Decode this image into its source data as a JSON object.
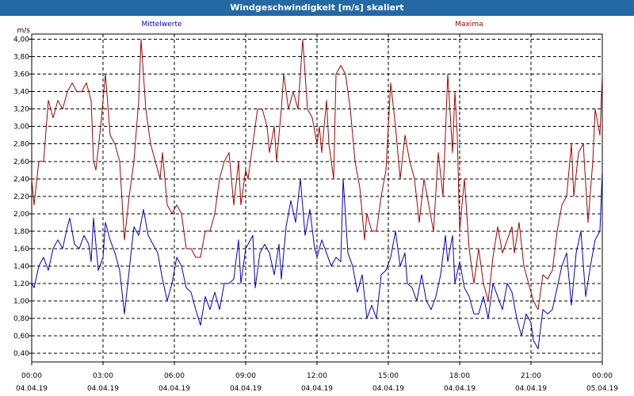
{
  "window": {
    "title": "Windgeschwindigkeit [m/s] skaliert"
  },
  "chart_data": {
    "type": "line",
    "title": "Windgeschwindigkeit [m/s] skaliert",
    "ylabel": "m/s",
    "ylim": [
      0.3,
      4.06
    ],
    "y_ticks": [
      "0,40",
      "0,60",
      "0,80",
      "1,00",
      "1,20",
      "1,40",
      "1,60",
      "1,80",
      "2,00",
      "2,20",
      "2,40",
      "2,60",
      "2,80",
      "3,00",
      "3,20",
      "3,40",
      "3,60",
      "3,80",
      "4,00"
    ],
    "y_tick_values": [
      0.4,
      0.6,
      0.8,
      1.0,
      1.2,
      1.4,
      1.6,
      1.8,
      2.0,
      2.2,
      2.4,
      2.6,
      2.8,
      3.0,
      3.2,
      3.4,
      3.6,
      3.8,
      4.0
    ],
    "xlim": [
      0,
      24
    ],
    "x_ticks": [
      {
        "time": "00:00",
        "date": "04.04.19",
        "hour": 0
      },
      {
        "time": "03:00",
        "date": "04.04.19",
        "hour": 3
      },
      {
        "time": "06:00",
        "date": "04.04.19",
        "hour": 6
      },
      {
        "time": "09:00",
        "date": "04.04.19",
        "hour": 9
      },
      {
        "time": "12:00",
        "date": "04.04.19",
        "hour": 12
      },
      {
        "time": "15:00",
        "date": "04.04.19",
        "hour": 15
      },
      {
        "time": "18:00",
        "date": "04.04.19",
        "hour": 18
      },
      {
        "time": "21:00",
        "date": "04.04.19",
        "hour": 21
      },
      {
        "time": "00:00",
        "date": "05.04.19",
        "hour": 24
      }
    ],
    "grid": true,
    "legend_position": "top",
    "series": [
      {
        "name": "Mittelwerte",
        "color": "#0000cc",
        "points": [
          [
            0,
            1.2
          ],
          [
            0.1,
            1.15
          ],
          [
            0.3,
            1.4
          ],
          [
            0.5,
            1.5
          ],
          [
            0.7,
            1.35
          ],
          [
            0.9,
            1.6
          ],
          [
            1.1,
            1.7
          ],
          [
            1.3,
            1.6
          ],
          [
            1.5,
            1.85
          ],
          [
            1.6,
            1.95
          ],
          [
            1.8,
            1.65
          ],
          [
            2.0,
            1.6
          ],
          [
            2.2,
            1.75
          ],
          [
            2.4,
            1.65
          ],
          [
            2.5,
            1.45
          ],
          [
            2.6,
            1.95
          ],
          [
            2.8,
            1.35
          ],
          [
            3.0,
            1.5
          ],
          [
            3.1,
            1.9
          ],
          [
            3.3,
            1.7
          ],
          [
            3.5,
            1.55
          ],
          [
            3.7,
            1.35
          ],
          [
            3.9,
            0.85
          ],
          [
            4.1,
            1.35
          ],
          [
            4.3,
            1.85
          ],
          [
            4.5,
            1.75
          ],
          [
            4.7,
            2.05
          ],
          [
            4.9,
            1.75
          ],
          [
            5.1,
            1.65
          ],
          [
            5.3,
            1.55
          ],
          [
            5.5,
            1.25
          ],
          [
            5.7,
            1.0
          ],
          [
            5.9,
            1.2
          ],
          [
            6.1,
            1.5
          ],
          [
            6.3,
            1.4
          ],
          [
            6.5,
            1.15
          ],
          [
            6.7,
            1.1
          ],
          [
            6.9,
            0.9
          ],
          [
            7.1,
            0.72
          ],
          [
            7.3,
            1.05
          ],
          [
            7.5,
            0.9
          ],
          [
            7.7,
            1.1
          ],
          [
            7.9,
            0.9
          ],
          [
            8.1,
            1.2
          ],
          [
            8.3,
            1.2
          ],
          [
            8.5,
            1.25
          ],
          [
            8.7,
            1.7
          ],
          [
            8.8,
            1.2
          ],
          [
            9.0,
            1.6
          ],
          [
            9.1,
            1.65
          ],
          [
            9.3,
            1.75
          ],
          [
            9.4,
            1.15
          ],
          [
            9.6,
            1.55
          ],
          [
            9.8,
            1.65
          ],
          [
            10.0,
            1.55
          ],
          [
            10.2,
            1.3
          ],
          [
            10.4,
            1.65
          ],
          [
            10.5,
            1.25
          ],
          [
            10.7,
            1.85
          ],
          [
            10.9,
            2.15
          ],
          [
            11.1,
            1.9
          ],
          [
            11.3,
            2.4
          ],
          [
            11.5,
            1.75
          ],
          [
            11.7,
            2.05
          ],
          [
            11.9,
            1.6
          ],
          [
            12.0,
            1.5
          ],
          [
            12.2,
            1.7
          ],
          [
            12.4,
            1.55
          ],
          [
            12.6,
            1.4
          ],
          [
            12.8,
            1.5
          ],
          [
            13.0,
            1.45
          ],
          [
            13.1,
            2.4
          ],
          [
            13.3,
            1.55
          ],
          [
            13.5,
            1.4
          ],
          [
            13.7,
            1.1
          ],
          [
            13.9,
            1.3
          ],
          [
            14.1,
            0.8
          ],
          [
            14.3,
            0.95
          ],
          [
            14.5,
            0.8
          ],
          [
            14.7,
            1.3
          ],
          [
            14.9,
            1.35
          ],
          [
            15.1,
            1.5
          ],
          [
            15.3,
            1.8
          ],
          [
            15.5,
            1.4
          ],
          [
            15.7,
            1.55
          ],
          [
            15.8,
            1.2
          ],
          [
            16.0,
            1.15
          ],
          [
            16.2,
            1.0
          ],
          [
            16.4,
            1.3
          ],
          [
            16.6,
            1.0
          ],
          [
            16.8,
            0.9
          ],
          [
            17.0,
            1.05
          ],
          [
            17.2,
            1.3
          ],
          [
            17.4,
            1.75
          ],
          [
            17.5,
            1.45
          ],
          [
            17.7,
            1.75
          ],
          [
            17.8,
            1.2
          ],
          [
            18.0,
            1.45
          ],
          [
            18.2,
            1.15
          ],
          [
            18.4,
            1.05
          ],
          [
            18.6,
            0.85
          ],
          [
            18.8,
            0.85
          ],
          [
            19.0,
            1.05
          ],
          [
            19.2,
            0.8
          ],
          [
            19.4,
            1.2
          ],
          [
            19.6,
            1.05
          ],
          [
            19.8,
            0.9
          ],
          [
            20.0,
            1.2
          ],
          [
            20.2,
            1.1
          ],
          [
            20.4,
            0.8
          ],
          [
            20.6,
            0.6
          ],
          [
            20.8,
            0.85
          ],
          [
            21.0,
            0.75
          ],
          [
            21.1,
            0.55
          ],
          [
            21.3,
            0.45
          ],
          [
            21.5,
            0.9
          ],
          [
            21.7,
            0.85
          ],
          [
            21.9,
            0.9
          ],
          [
            22.1,
            1.15
          ],
          [
            22.3,
            1.4
          ],
          [
            22.5,
            1.55
          ],
          [
            22.7,
            0.95
          ],
          [
            22.9,
            1.55
          ],
          [
            23.1,
            1.8
          ],
          [
            23.3,
            1.05
          ],
          [
            23.5,
            1.4
          ],
          [
            23.7,
            1.7
          ],
          [
            23.9,
            1.8
          ],
          [
            24.0,
            2.5
          ]
        ]
      },
      {
        "name": "Maxima",
        "color": "#aa0000",
        "points": [
          [
            0,
            2.4
          ],
          [
            0.1,
            2.1
          ],
          [
            0.3,
            2.6
          ],
          [
            0.5,
            2.6
          ],
          [
            0.7,
            3.3
          ],
          [
            0.9,
            3.1
          ],
          [
            1.1,
            3.3
          ],
          [
            1.3,
            3.2
          ],
          [
            1.5,
            3.4
          ],
          [
            1.7,
            3.5
          ],
          [
            1.9,
            3.4
          ],
          [
            2.1,
            3.4
          ],
          [
            2.3,
            3.5
          ],
          [
            2.5,
            3.3
          ],
          [
            2.6,
            2.6
          ],
          [
            2.7,
            2.5
          ],
          [
            2.9,
            3.0
          ],
          [
            3.1,
            3.6
          ],
          [
            3.3,
            2.9
          ],
          [
            3.5,
            2.8
          ],
          [
            3.7,
            2.6
          ],
          [
            3.9,
            1.7
          ],
          [
            4.1,
            2.2
          ],
          [
            4.3,
            2.6
          ],
          [
            4.5,
            3.3
          ],
          [
            4.6,
            4.0
          ],
          [
            4.8,
            3.2
          ],
          [
            5.0,
            2.8
          ],
          [
            5.2,
            2.6
          ],
          [
            5.4,
            2.4
          ],
          [
            5.5,
            2.7
          ],
          [
            5.7,
            2.1
          ],
          [
            5.9,
            2.0
          ],
          [
            6.1,
            2.1
          ],
          [
            6.3,
            2.0
          ],
          [
            6.5,
            1.6
          ],
          [
            6.7,
            1.6
          ],
          [
            6.9,
            1.5
          ],
          [
            7.1,
            1.5
          ],
          [
            7.3,
            1.8
          ],
          [
            7.5,
            1.8
          ],
          [
            7.7,
            2.0
          ],
          [
            7.9,
            2.4
          ],
          [
            8.1,
            2.6
          ],
          [
            8.3,
            2.7
          ],
          [
            8.5,
            2.1
          ],
          [
            8.7,
            2.6
          ],
          [
            8.8,
            2.1
          ],
          [
            9.0,
            2.5
          ],
          [
            9.1,
            2.4
          ],
          [
            9.3,
            2.8
          ],
          [
            9.5,
            3.2
          ],
          [
            9.7,
            3.2
          ],
          [
            9.9,
            3.0
          ],
          [
            10.0,
            2.7
          ],
          [
            10.2,
            3.0
          ],
          [
            10.3,
            2.6
          ],
          [
            10.5,
            3.2
          ],
          [
            10.6,
            3.6
          ],
          [
            10.8,
            3.2
          ],
          [
            11.0,
            3.4
          ],
          [
            11.2,
            3.2
          ],
          [
            11.4,
            4.0
          ],
          [
            11.6,
            3.2
          ],
          [
            11.8,
            3.1
          ],
          [
            12.0,
            2.8
          ],
          [
            12.1,
            3.0
          ],
          [
            12.2,
            2.7
          ],
          [
            12.4,
            3.3
          ],
          [
            12.5,
            2.8
          ],
          [
            12.7,
            2.4
          ],
          [
            12.8,
            3.6
          ],
          [
            13.0,
            3.7
          ],
          [
            13.2,
            3.6
          ],
          [
            13.4,
            3.2
          ],
          [
            13.6,
            2.6
          ],
          [
            13.8,
            2.3
          ],
          [
            14.0,
            1.7
          ],
          [
            14.1,
            2.0
          ],
          [
            14.3,
            1.8
          ],
          [
            14.5,
            1.8
          ],
          [
            14.7,
            2.2
          ],
          [
            14.9,
            2.5
          ],
          [
            15.0,
            3.0
          ],
          [
            15.1,
            3.5
          ],
          [
            15.3,
            3.0
          ],
          [
            15.5,
            2.4
          ],
          [
            15.7,
            2.9
          ],
          [
            15.9,
            2.6
          ],
          [
            16.1,
            2.4
          ],
          [
            16.3,
            1.9
          ],
          [
            16.5,
            2.4
          ],
          [
            16.7,
            2.1
          ],
          [
            16.9,
            1.8
          ],
          [
            17.1,
            2.7
          ],
          [
            17.3,
            2.2
          ],
          [
            17.5,
            3.6
          ],
          [
            17.7,
            2.7
          ],
          [
            17.8,
            3.4
          ],
          [
            17.9,
            2.9
          ],
          [
            18.0,
            1.8
          ],
          [
            18.2,
            2.4
          ],
          [
            18.4,
            1.6
          ],
          [
            18.6,
            1.2
          ],
          [
            18.8,
            1.6
          ],
          [
            19.0,
            1.2
          ],
          [
            19.2,
            1.0
          ],
          [
            19.4,
            1.5
          ],
          [
            19.6,
            1.85
          ],
          [
            19.8,
            1.55
          ],
          [
            20.0,
            1.7
          ],
          [
            20.2,
            1.85
          ],
          [
            20.3,
            1.55
          ],
          [
            20.5,
            1.9
          ],
          [
            20.7,
            1.4
          ],
          [
            20.9,
            1.2
          ],
          [
            21.1,
            1.0
          ],
          [
            21.3,
            0.9
          ],
          [
            21.5,
            1.3
          ],
          [
            21.7,
            1.25
          ],
          [
            21.9,
            1.35
          ],
          [
            22.1,
            1.8
          ],
          [
            22.3,
            2.1
          ],
          [
            22.5,
            2.2
          ],
          [
            22.7,
            2.8
          ],
          [
            22.8,
            2.2
          ],
          [
            23.0,
            2.7
          ],
          [
            23.2,
            2.8
          ],
          [
            23.4,
            1.9
          ],
          [
            23.6,
            2.6
          ],
          [
            23.7,
            3.2
          ],
          [
            23.9,
            2.9
          ],
          [
            24.0,
            3.6
          ]
        ]
      }
    ]
  }
}
